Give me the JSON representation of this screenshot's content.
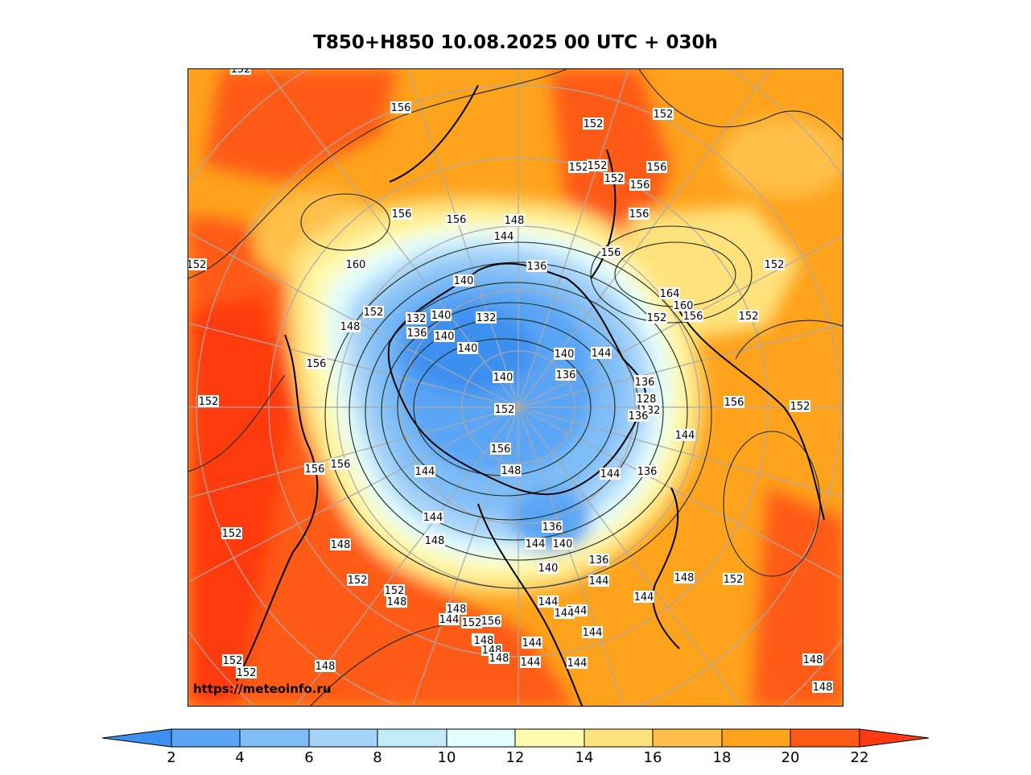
{
  "title": "T850+H850 10.08.2025 00 UTC + 030h",
  "watermark": "https://meteoinfo.ru",
  "colorbar": {
    "ticks": [
      "2",
      "4",
      "6",
      "8",
      "10",
      "12",
      "14",
      "16",
      "18",
      "20",
      "22"
    ],
    "colors": [
      "#3d8ff0",
      "#5aa5f5",
      "#7fbdf7",
      "#a5d2f8",
      "#c4ecf8",
      "#e2fdfd",
      "#fffbb0",
      "#ffe27c",
      "#ffc04a",
      "#ffa21c",
      "#ff5a14",
      "#ff3a10"
    ]
  },
  "contour_labels": [
    "152",
    "156",
    "152",
    "152",
    "152",
    "152",
    "152",
    "156",
    "156",
    "156",
    "156",
    "148",
    "156",
    "156",
    "152",
    "152",
    "160",
    "152",
    "148",
    "140",
    "144",
    "136",
    "164",
    "160",
    "156",
    "152",
    "152",
    "132",
    "140",
    "132",
    "136",
    "140",
    "140",
    "140",
    "144",
    "140",
    "136",
    "156",
    "136",
    "136",
    "128",
    "132",
    "136",
    "152",
    "152",
    "144",
    "156",
    "156",
    "152",
    "156",
    "156",
    "148",
    "144",
    "136",
    "144",
    "152",
    "144",
    "144",
    "152",
    "148",
    "144",
    "136",
    "140",
    "148",
    "140",
    "144",
    "136",
    "148",
    "152",
    "152",
    "148",
    "148",
    "144",
    "152",
    "148",
    "144",
    "144",
    "148",
    "152",
    "156",
    "148",
    "144",
    "148",
    "144",
    "144",
    "144",
    "144",
    "152",
    "152",
    "148",
    "148",
    "148"
  ]
}
